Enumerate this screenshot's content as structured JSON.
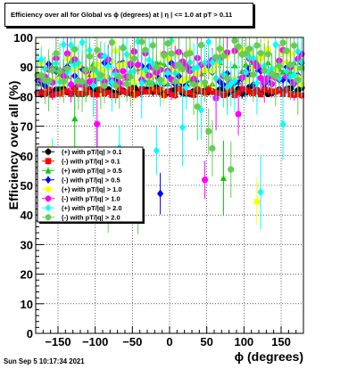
{
  "timestamp": "Sun Sep  5 10:17:34 2021",
  "chart_data": {
    "type": "scatter",
    "title": "Efficiency over all for Global vs ϕ (degrees) at |  η | <= 1.0 at pT > 0.11",
    "xlabel": "ϕ (degrees)",
    "ylabel": "Efficiency over all (%)",
    "xlim": [
      -180,
      180
    ],
    "ylim": [
      0,
      100
    ],
    "x_ticks": [
      -150,
      -100,
      -50,
      0,
      50,
      100,
      150
    ],
    "x_tick_labels": [
      "−150",
      "−100",
      "−50",
      "0",
      "50",
      "100",
      "150"
    ],
    "y_ticks": [
      0,
      10,
      20,
      30,
      40,
      50,
      60,
      70,
      80,
      90,
      100
    ],
    "y_tick_labels": [
      "0",
      "10",
      "20",
      "30",
      "40",
      "50",
      "60",
      "70",
      "80",
      "90",
      "100"
    ],
    "grid": true,
    "legend_position": "middle-left",
    "series": [
      {
        "name": "(+) with pT/|q| > 0.1",
        "color": "#000000",
        "marker": "circle",
        "base": 82,
        "spread": 1.2,
        "err": 1.2,
        "lowfrac": 0.0,
        "seed": 11
      },
      {
        "name": "(-) with pT/|q| > 0.1",
        "color": "#ff0000",
        "marker": "square",
        "base": 81.5,
        "spread": 1.2,
        "err": 1.2,
        "lowfrac": 0.0,
        "seed": 23
      },
      {
        "name": "(+) with pT/|q| > 0.5",
        "color": "#00cc00",
        "marker": "triangle",
        "base": 88,
        "spread": 4,
        "err": 3,
        "lowfrac": 0.03,
        "seed": 37
      },
      {
        "name": "(-) with pT/|q| > 0.5",
        "color": "#0000ff",
        "marker": "diamond",
        "base": 87.5,
        "spread": 4,
        "err": 3,
        "lowfrac": 0.03,
        "seed": 41
      },
      {
        "name": "(+) with pT/|q| > 1.0",
        "color": "#ffff00",
        "marker": "circle",
        "base": 90,
        "spread": 6,
        "err": 5,
        "lowfrac": 0.05,
        "seed": 53
      },
      {
        "name": "(-) with pT/|q| > 1.0",
        "color": "#ff00ff",
        "marker": "circle",
        "base": 90,
        "spread": 6,
        "err": 5,
        "lowfrac": 0.05,
        "seed": 67
      },
      {
        "name": "(+) with pT/|q| > 2.0",
        "color": "#00ffff",
        "marker": "diamond",
        "base": 91,
        "spread": 8,
        "err": 8,
        "lowfrac": 0.09,
        "seed": 79
      },
      {
        "name": "(-) with pT/|q| > 2.0",
        "color": "#66cc55",
        "marker": "circle",
        "base": 91,
        "spread": 8,
        "err": 8,
        "lowfrac": 0.1,
        "seed": 97
      }
    ],
    "n_bins": 72
  }
}
